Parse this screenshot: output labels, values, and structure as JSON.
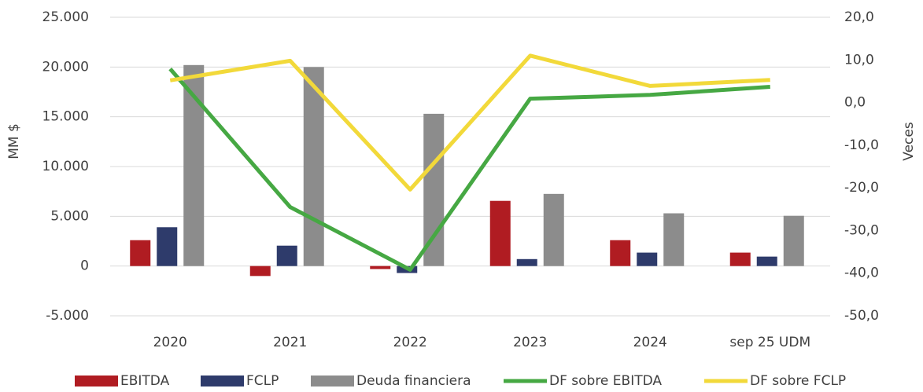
{
  "chart_data": {
    "type": "bar",
    "categories": [
      "2020",
      "2021",
      "2022",
      "2023",
      "2024",
      "sep 25 UDM"
    ],
    "series": [
      {
        "name": "EBITDA",
        "type": "bar",
        "color": "#b01c22",
        "values": [
          2600,
          -1000,
          -300,
          6550,
          2600,
          1350
        ]
      },
      {
        "name": "FCLP",
        "type": "bar",
        "color": "#2e3b6b",
        "values": [
          3900,
          2050,
          -700,
          700,
          1350,
          950
        ]
      },
      {
        "name": "Deuda financiera",
        "type": "bar",
        "color": "#8c8c8c",
        "values": [
          20200,
          20000,
          15300,
          7250,
          5300,
          5050
        ]
      },
      {
        "name": "DF sobre EBITDA",
        "type": "line",
        "axis": "y2",
        "color": "#46a843",
        "values": [
          7.9,
          -24.5,
          -39.2,
          0.9,
          1.8,
          3.7
        ]
      },
      {
        "name": "DF sobre FCLP",
        "type": "line",
        "axis": "y2",
        "color": "#f2d93a",
        "values": [
          5.2,
          9.8,
          -20.4,
          11.0,
          3.9,
          5.3
        ]
      }
    ],
    "ylabel": "MM $",
    "y2label": "Veces",
    "ylim": [
      -5000,
      25000
    ],
    "yticks": [
      {
        "value": -5000,
        "label": "-5.000"
      },
      0,
      {
        "value": 5000,
        "label": "5.000"
      },
      {
        "value": 10000,
        "label": "10.000"
      },
      {
        "value": 15000,
        "label": "15.000"
      },
      {
        "value": 20000,
        "label": "20.000"
      },
      {
        "value": 25000,
        "label": "25.000"
      }
    ],
    "y2lim": [
      -50,
      20
    ],
    "y2ticks": [
      {
        "value": -50,
        "label": "-50,0"
      },
      {
        "value": -40,
        "label": "-40,0"
      },
      {
        "value": -30,
        "label": "-30,0"
      },
      {
        "value": -20,
        "label": "-20,0"
      },
      {
        "value": -10,
        "label": "-10,0"
      },
      {
        "value": 0,
        "label": "0,0"
      },
      {
        "value": 10,
        "label": "10,0"
      },
      {
        "value": 20,
        "label": "20,0"
      }
    ],
    "grid": true,
    "legend": "bottom"
  }
}
